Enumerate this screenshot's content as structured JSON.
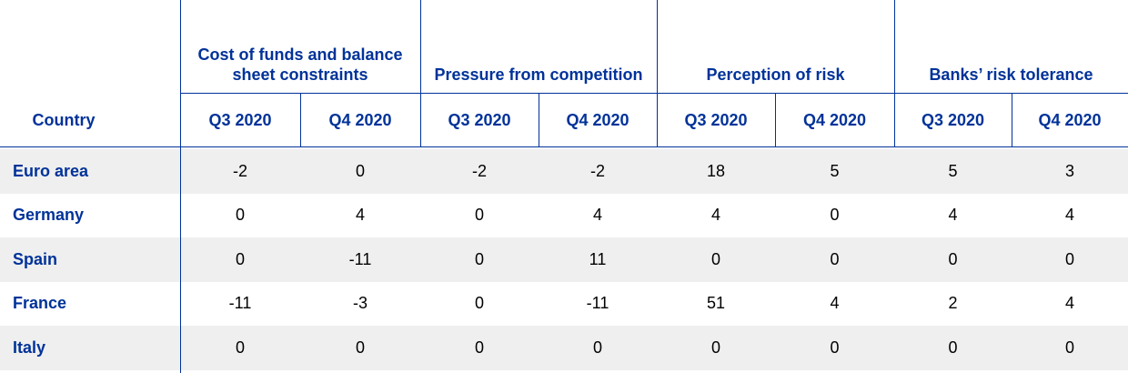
{
  "header": {
    "country": "Country",
    "groups": [
      "Cost of funds and balance sheet constraints",
      "Pressure from competition",
      "Perception of risk",
      "Banks’ risk tolerance"
    ],
    "periods": [
      "Q3 2020",
      "Q4 2020",
      "Q3 2020",
      "Q4 2020",
      "Q3 2020",
      "Q4 2020",
      "Q3 2020",
      "Q4 2020"
    ]
  },
  "table": {
    "rows": [
      {
        "country": "Euro area",
        "values": [
          -2,
          0,
          -2,
          -2,
          18,
          5,
          5,
          3
        ]
      },
      {
        "country": "Germany",
        "values": [
          0,
          4,
          0,
          4,
          4,
          0,
          4,
          4
        ]
      },
      {
        "country": "Spain",
        "values": [
          0,
          -11,
          0,
          11,
          0,
          0,
          0,
          0
        ]
      },
      {
        "country": "France",
        "values": [
          -11,
          -3,
          0,
          -11,
          51,
          4,
          2,
          4
        ]
      },
      {
        "country": "Italy",
        "values": [
          0,
          0,
          0,
          0,
          0,
          0,
          0,
          0
        ]
      }
    ]
  }
}
